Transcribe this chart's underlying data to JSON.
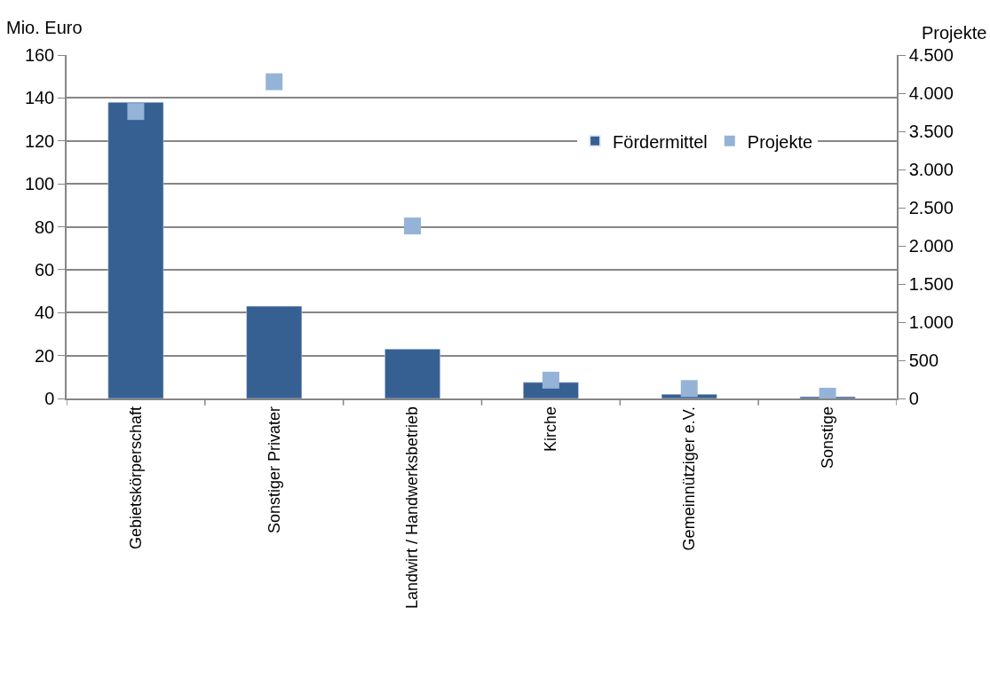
{
  "chart_data": {
    "type": "bar",
    "ylabel": "Mio. Euro",
    "y2label": "Projekte",
    "categories": [
      "Gebietskörperschaft",
      "Sonstiger Privater",
      "Landwirt / Handwerksbetrieb",
      "Kirche",
      "Gemeinnütziger e.V.",
      "Sonstige"
    ],
    "series": [
      {
        "name": "Fördermittel",
        "color": "#376092",
        "values": [
          138,
          43,
          23,
          7.5,
          2,
          0.8
        ]
      },
      {
        "name": "Projekte",
        "type": "scatter",
        "axis": "y2",
        "marker": "square",
        "color": "#95b3d7",
        "values": [
          3760,
          4150,
          2260,
          240,
          130,
          30
        ]
      }
    ],
    "ylim": [
      0,
      160
    ],
    "yticks": [
      0,
      20,
      40,
      60,
      80,
      100,
      120,
      140,
      160
    ],
    "y2lim": [
      0,
      4500
    ],
    "y2ticks": [
      0,
      500,
      {
        "value": 1000,
        "label": "1.000"
      },
      {
        "value": 1500,
        "label": "1.500"
      },
      {
        "value": 2000,
        "label": "2.000"
      },
      {
        "value": 2500,
        "label": "2.500"
      },
      {
        "value": 3000,
        "label": "3.000"
      },
      {
        "value": 3500,
        "label": "3.500"
      },
      {
        "value": 4000,
        "label": "4.000"
      },
      {
        "value": 4500,
        "label": "4.500"
      }
    ],
    "grid": "y",
    "legend": "top right"
  }
}
